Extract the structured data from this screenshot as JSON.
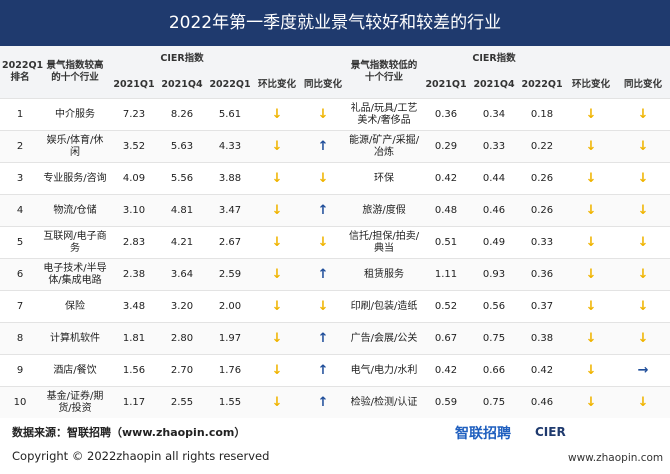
{
  "title": "2022年第一季度就业景气较好和较差的行业",
  "table": {
    "header": {
      "left": {
        "rank": "2022Q1排名",
        "industry": "景气指数较高的十个行业",
        "cier": "CIER指数",
        "quarters": [
          "2021Q1",
          "2021Q4",
          "2022Q1"
        ],
        "mom": "环比变化",
        "yoy": "同比变化"
      },
      "right": {
        "industry": "景气指数较低的十个行业",
        "cier": "CIER指数",
        "quarters": [
          "2021Q1",
          "2021Q4",
          "2022Q1"
        ],
        "mom": "环比变化",
        "yoy": "同比变化"
      }
    },
    "arrow_colors": {
      "↓": "#f0b400",
      "↑": "#1f4e9a",
      "→": "#1f4e9a"
    },
    "rows": [
      [
        "1",
        "中介服务",
        "7.23",
        "8.26",
        "5.61",
        "↓",
        "↓",
        "礼品/玩具/工艺美术/奢侈品",
        "0.36",
        "0.34",
        "0.18",
        "↓",
        "↓"
      ],
      [
        "2",
        "娱乐/体育/休闲",
        "3.52",
        "5.63",
        "4.33",
        "↓",
        "↑",
        "能源/矿产/采掘/冶炼",
        "0.29",
        "0.33",
        "0.22",
        "↓",
        "↓"
      ],
      [
        "3",
        "专业服务/咨询",
        "4.09",
        "5.56",
        "3.88",
        "↓",
        "↓",
        "环保",
        "0.42",
        "0.44",
        "0.26",
        "↓",
        "↓"
      ],
      [
        "4",
        "物流/仓储",
        "3.10",
        "4.81",
        "3.47",
        "↓",
        "↑",
        "旅游/度假",
        "0.48",
        "0.46",
        "0.26",
        "↓",
        "↓"
      ],
      [
        "5",
        "互联网/电子商务",
        "2.83",
        "4.21",
        "2.67",
        "↓",
        "↓",
        "信托/担保/拍卖/典当",
        "0.51",
        "0.49",
        "0.33",
        "↓",
        "↓"
      ],
      [
        "6",
        "电子技术/半导体/集成电路",
        "2.38",
        "3.64",
        "2.59",
        "↓",
        "↑",
        "租赁服务",
        "1.11",
        "0.93",
        "0.36",
        "↓",
        "↓"
      ],
      [
        "7",
        "保险",
        "3.48",
        "3.20",
        "2.00",
        "↓",
        "↓",
        "印刷/包装/造纸",
        "0.52",
        "0.56",
        "0.37",
        "↓",
        "↓"
      ],
      [
        "8",
        "计算机软件",
        "1.81",
        "2.80",
        "1.97",
        "↓",
        "↑",
        "广告/会展/公关",
        "0.67",
        "0.75",
        "0.38",
        "↓",
        "↓"
      ],
      [
        "9",
        "酒店/餐饮",
        "1.56",
        "2.70",
        "1.76",
        "↓",
        "↑",
        "电气/电力/水利",
        "0.42",
        "0.66",
        "0.42",
        "↓",
        "→"
      ],
      [
        "10",
        "基金/证券/期货/投资",
        "1.17",
        "2.55",
        "1.55",
        "↓",
        "↑",
        "检验/检测/认证",
        "0.59",
        "0.75",
        "0.46",
        "↓",
        "↓"
      ]
    ]
  },
  "footer": {
    "source": "数据来源：智联招聘（www.zhaopin.com）",
    "copyright": "Copyright © 2022zhaopin all rights reserved",
    "logo_zhaopin": "智联招聘",
    "logo_cier": "CIER",
    "url": "www.zhaopin.com"
  }
}
